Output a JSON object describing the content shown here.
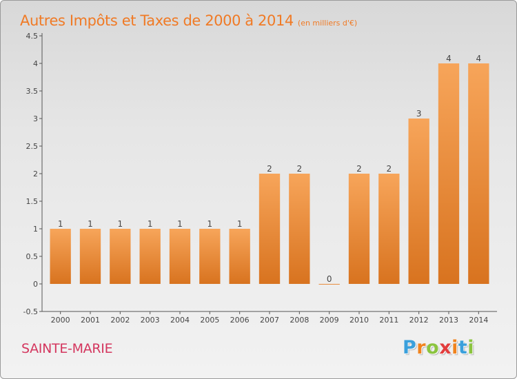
{
  "header": {
    "title": "Autres Impôts et Taxes de 2000 à 2014",
    "unit": "(en milliers d'€)"
  },
  "footer": {
    "commune": "SAINTE-MARIE",
    "logo": "Proxiti",
    "logo_colors": [
      "#3aa0dc",
      "#f0831e",
      "#8bc43f",
      "#e23d3d",
      "#f0831e",
      "#3aa0dc",
      "#8bc43f"
    ]
  },
  "colors": {
    "title": "#f07a25",
    "commune": "#d4365e",
    "bar_light": "#f7a55a",
    "bar_dark": "#d8731f",
    "axis": "#555555"
  },
  "chart_data": {
    "type": "bar",
    "title": "Autres Impôts et Taxes de 2000 à 2014",
    "subtitle": "(en milliers d'€)",
    "categories": [
      "2000",
      "2001",
      "2002",
      "2003",
      "2004",
      "2005",
      "2006",
      "2007",
      "2008",
      "2009",
      "2010",
      "2011",
      "2012",
      "2013",
      "2014"
    ],
    "values": [
      1,
      1,
      1,
      1,
      1,
      1,
      1,
      2,
      2,
      0,
      2,
      2,
      3,
      4,
      4
    ],
    "data_labels": [
      "1",
      "1",
      "1",
      "1",
      "1",
      "1",
      "1",
      "2",
      "2",
      "0",
      "2",
      "2",
      "3",
      "4",
      "4"
    ],
    "yticks": [
      -0.5,
      0,
      0.5,
      1,
      1.5,
      2,
      2.5,
      3,
      3.5,
      4,
      4.5
    ],
    "ytick_labels": [
      "-0.5",
      "0",
      "0.5",
      "1",
      "1.5",
      "2",
      "2.5",
      "3",
      "3.5",
      "4",
      "4.5"
    ],
    "ylim": [
      -0.5,
      4.5
    ],
    "xlabel": "",
    "ylabel": "",
    "grid": false,
    "legend": "none"
  }
}
